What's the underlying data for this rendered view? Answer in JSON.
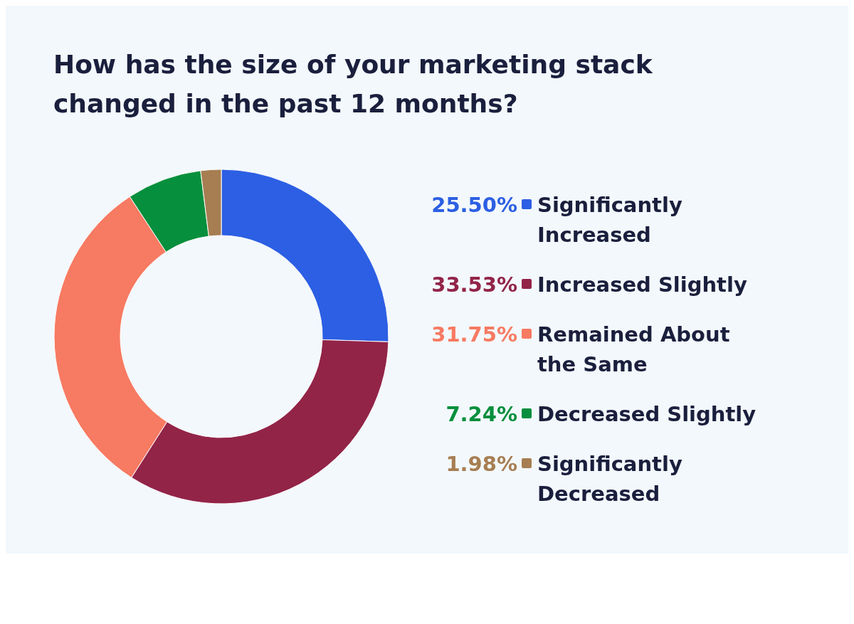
{
  "chart_data": {
    "type": "donut",
    "title": "How has the size of your marketing stack changed in the past 12 months?",
    "categories": [
      "Significantly Increased",
      "Increased Slightly",
      "Remained About the Same",
      "Decreased Slightly",
      "Significantly Decreased"
    ],
    "values": [
      25.5,
      33.53,
      31.75,
      7.24,
      1.98
    ],
    "value_labels": [
      "25.50%",
      "33.53%",
      "31.75%",
      "7.24%",
      "1.98%"
    ],
    "colors": [
      "#2c5fe3",
      "#922448",
      "#f77a62",
      "#068f3d",
      "#a77e52"
    ],
    "legend": "right"
  }
}
